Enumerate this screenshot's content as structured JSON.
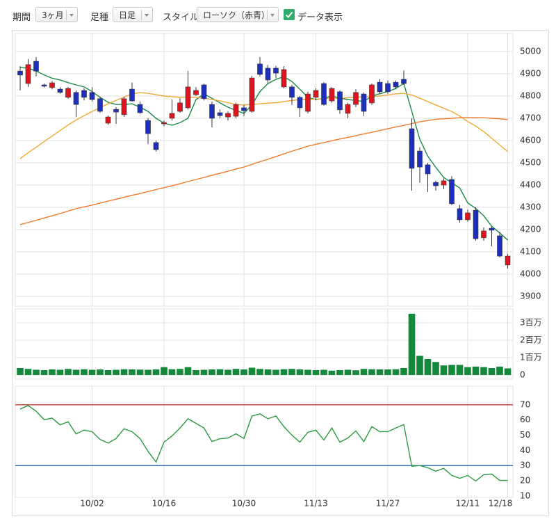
{
  "toolbar": {
    "period_label": "期間",
    "period": "3ヶ月",
    "bar_label": "足種",
    "bar": "日足",
    "style_label": "スタイル",
    "style": "ローソク（赤青）",
    "data_label": "データ表示"
  },
  "chart_data": [
    {
      "type": "candlestick",
      "open": [
        4912,
        4856,
        4956,
        4850,
        4838,
        4831,
        4794,
        4816,
        4825,
        4816,
        4788,
        4678,
        4740,
        4716,
        4831,
        4762,
        4690,
        4591,
        4675,
        4700,
        4731,
        4747,
        4806,
        4850,
        4762,
        4725,
        4706,
        4709,
        4747,
        4731,
        4944,
        4925,
        4925,
        4841,
        4841,
        4794,
        4731,
        4794,
        4856,
        4778,
        4819,
        4722,
        4762,
        4809,
        4769,
        4862,
        4856,
        4862,
        4875,
        4653,
        4553,
        4491,
        4412,
        4400,
        4425,
        4294,
        4244,
        4287,
        4163,
        4206,
        4172,
        4041
      ],
      "high": [
        4934,
        4966,
        4975,
        4856,
        4868,
        4840,
        4840,
        4825,
        4834,
        4840,
        4797,
        4712,
        4750,
        4797,
        4860,
        4775,
        4700,
        4600,
        4690,
        4784,
        4790,
        4913,
        4840,
        4856,
        4775,
        4740,
        4730,
        4770,
        4760,
        4890,
        4975,
        4940,
        4935,
        4934,
        4850,
        4800,
        4820,
        4834,
        4862,
        4840,
        4825,
        4770,
        4830,
        4815,
        4856,
        4875,
        4870,
        4870,
        4915,
        4700,
        4570,
        4500,
        4420,
        4430,
        4440,
        4310,
        4290,
        4300,
        4210,
        4215,
        4190,
        4090
      ],
      "low": [
        4825,
        4841,
        4888,
        4838,
        4830,
        4810,
        4788,
        4706,
        4780,
        4775,
        4725,
        4670,
        4675,
        4706,
        4775,
        4720,
        4584,
        4550,
        4665,
        4690,
        4725,
        4740,
        4800,
        4780,
        4659,
        4700,
        4690,
        4700,
        4710,
        4725,
        4888,
        4856,
        4880,
        4834,
        4760,
        4706,
        4722,
        4780,
        4756,
        4770,
        4720,
        4700,
        4750,
        4710,
        4760,
        4810,
        4810,
        4830,
        4850,
        4375,
        4410,
        4369,
        4375,
        4381,
        4310,
        4231,
        4235,
        4150,
        4150,
        4125,
        4075,
        4025
      ],
      "close": [
        4894,
        4941,
        4912,
        4844,
        4859,
        4816,
        4834,
        4762,
        4794,
        4784,
        4731,
        4706,
        4728,
        4788,
        4778,
        4725,
        4631,
        4559,
        4681,
        4722,
        4769,
        4841,
        4825,
        4788,
        4700,
        4712,
        4722,
        4762,
        4734,
        4881,
        4897,
        4872,
        4903,
        4919,
        4794,
        4747,
        4809,
        4825,
        4762,
        4834,
        4738,
        4762,
        4816,
        4731,
        4850,
        4819,
        4819,
        4841,
        4856,
        4475,
        4481,
        4450,
        4397,
        4419,
        4316,
        4244,
        4275,
        4159,
        4194,
        4197,
        4081,
        4081
      ],
      "up_color": "#e0141e",
      "down_color": "#1c2fbd",
      "lines": [
        {
          "color": "#1a8a4a",
          "values": [
            4928,
            4925,
            4912,
            4895,
            4880,
            4872,
            4860,
            4850,
            4841,
            4820,
            4794,
            4772,
            4762,
            4762,
            4765,
            4750,
            4731,
            4700,
            4678,
            4669,
            4680,
            4700,
            4784,
            4809,
            4790,
            4769,
            4750,
            4735,
            4722,
            4760,
            4820,
            4856,
            4875,
            4887,
            4865,
            4830,
            4794,
            4784,
            4790,
            4800,
            4790,
            4784,
            4780,
            4775,
            4800,
            4810,
            4820,
            4834,
            4856,
            4731,
            4606,
            4530,
            4480,
            4434,
            4410,
            4387,
            4320,
            4295,
            4262,
            4215,
            4185,
            4153
          ]
        },
        {
          "color": "#f0a832",
          "values": [
            4519,
            4545,
            4570,
            4595,
            4620,
            4645,
            4670,
            4692,
            4712,
            4730,
            4748,
            4765,
            4780,
            4795,
            4810,
            4815,
            4812,
            4806,
            4800,
            4797,
            4794,
            4794,
            4794,
            4790,
            4785,
            4778,
            4770,
            4762,
            4760,
            4762,
            4765,
            4768,
            4770,
            4775,
            4780,
            4784,
            4784,
            4786,
            4788,
            4790,
            4790,
            4792,
            4794,
            4796,
            4798,
            4800,
            4805,
            4810,
            4812,
            4805,
            4790,
            4775,
            4760,
            4745,
            4730,
            4710,
            4685,
            4665,
            4640,
            4610,
            4580,
            4550
          ]
        },
        {
          "color": "#f07a2a",
          "values": [
            4222,
            4232,
            4242,
            4252,
            4262,
            4272,
            4283,
            4294,
            4302,
            4310,
            4319,
            4328,
            4336,
            4345,
            4354,
            4362,
            4371,
            4380,
            4388,
            4397,
            4406,
            4416,
            4425,
            4434,
            4444,
            4453,
            4462,
            4472,
            4481,
            4493,
            4505,
            4516,
            4528,
            4540,
            4552,
            4563,
            4575,
            4583,
            4591,
            4599,
            4607,
            4614,
            4622,
            4630,
            4637,
            4645,
            4653,
            4661,
            4668,
            4676,
            4684,
            4690,
            4695,
            4698,
            4700,
            4702,
            4703,
            4703,
            4702,
            4700,
            4698,
            4694
          ]
        }
      ],
      "ylim": [
        3856.25,
        5081.25
      ],
      "yticks": [
        3900,
        4000,
        4100,
        4200,
        4300,
        4400,
        4500,
        4600,
        4700,
        4800,
        4900,
        5000
      ],
      "grid": true
    },
    {
      "type": "bar",
      "values": [
        400000,
        350000,
        300000,
        280000,
        320000,
        300000,
        350000,
        300000,
        330000,
        300000,
        320000,
        280000,
        300000,
        330000,
        320000,
        310000,
        300000,
        320000,
        450000,
        330000,
        350000,
        450000,
        280000,
        300000,
        320000,
        330000,
        300000,
        350000,
        320000,
        420000,
        350000,
        320000,
        300000,
        330000,
        350000,
        320000,
        300000,
        280000,
        300000,
        250000,
        280000,
        300000,
        270000,
        350000,
        330000,
        320000,
        320000,
        330000,
        400000,
        3520000,
        1100000,
        920000,
        750000,
        550000,
        580000,
        580000,
        450000,
        480000,
        450000,
        400000,
        480000,
        380000
      ],
      "color": "#14893c",
      "ylim": [
        0,
        3680000
      ],
      "yticks": [
        0,
        {
          "value": 1000000,
          "label": "1百万"
        },
        {
          "value": 2000000,
          "label": "2百万"
        },
        {
          "value": 3000000,
          "label": "3百万"
        }
      ],
      "grid": true
    },
    {
      "type": "line",
      "categories": [
        null,
        null,
        null,
        null,
        null,
        null,
        null,
        null,
        null,
        "10/02",
        null,
        null,
        null,
        null,
        null,
        null,
        null,
        null,
        "10/16",
        null,
        null,
        null,
        null,
        null,
        null,
        null,
        null,
        null,
        "10/30",
        null,
        null,
        null,
        null,
        null,
        null,
        null,
        null,
        "11/13",
        null,
        null,
        null,
        null,
        null,
        null,
        null,
        null,
        "11/27",
        null,
        null,
        null,
        null,
        null,
        null,
        null,
        null,
        null,
        "12/11",
        null,
        null,
        null,
        null,
        "12/18"
      ],
      "values": [
        67.2,
        69.5,
        65.8,
        60.2,
        61.2,
        56.8,
        58.8,
        50.8,
        53.3,
        52.3,
        47.2,
        44.8,
        47.8,
        54.2,
        52.3,
        47.8,
        39.3,
        32.3,
        45.4,
        49.5,
        54.7,
        60.8,
        57.8,
        54.7,
        45.8,
        47.7,
        48.1,
        50.9,
        47.8,
        62.6,
        64,
        60.8,
        62.6,
        55.6,
        50,
        45.4,
        51.9,
        53.3,
        46.8,
        54.7,
        45.4,
        48.1,
        52.8,
        45.8,
        55.6,
        52.3,
        52.3,
        54.7,
        57,
        29.5,
        30,
        28.6,
        26.3,
        28.1,
        23.5,
        21.6,
        23.5,
        19.8,
        24,
        24.4,
        20.2,
        20.2
      ],
      "color": "#2a9a40",
      "levels": [
        {
          "value": 70,
          "color": "#c0392b"
        },
        {
          "value": 30,
          "color": "#2060b0"
        }
      ],
      "ylim": [
        9,
        80
      ],
      "yticks": [
        10,
        20,
        30,
        40,
        50,
        60,
        70
      ],
      "grid": false
    }
  ]
}
